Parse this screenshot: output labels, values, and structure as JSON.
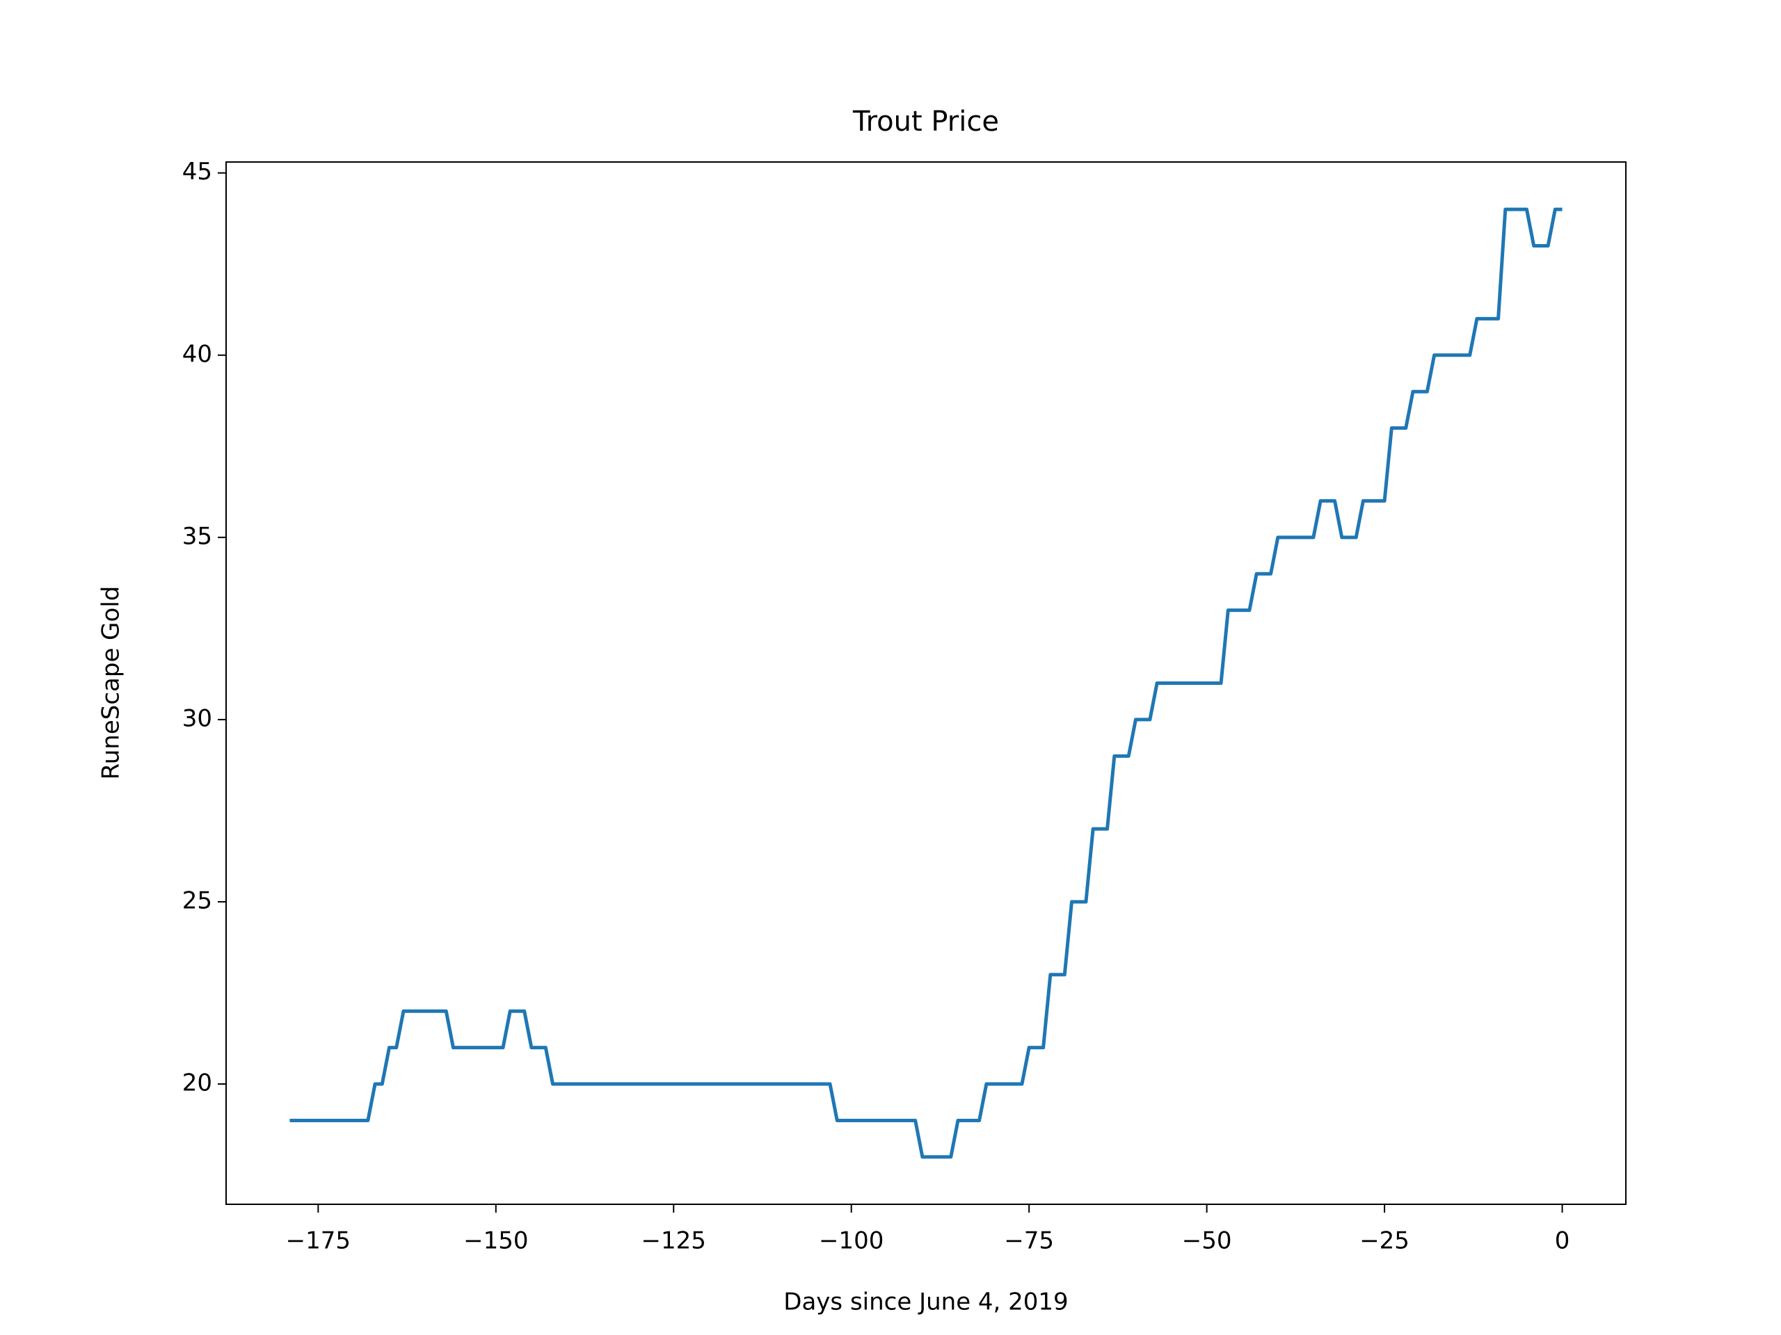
{
  "chart_data": {
    "type": "line",
    "title": "Trout Price",
    "xlabel": "Days since June 4, 2019",
    "ylabel": "RuneScape Gold",
    "x": [
      -179,
      -178,
      -177,
      -176,
      -175,
      -174,
      -173,
      -172,
      -171,
      -170,
      -169,
      -168,
      -167,
      -166,
      -165,
      -164,
      -163,
      -162,
      -161,
      -160,
      -159,
      -158,
      -157,
      -156,
      -155,
      -154,
      -153,
      -152,
      -151,
      -150,
      -149,
      -148,
      -147,
      -146,
      -145,
      -144,
      -143,
      -142,
      -141,
      -140,
      -139,
      -138,
      -137,
      -136,
      -135,
      -134,
      -133,
      -132,
      -131,
      -130,
      -129,
      -128,
      -127,
      -126,
      -125,
      -124,
      -123,
      -122,
      -121,
      -120,
      -119,
      -118,
      -117,
      -116,
      -115,
      -114,
      -113,
      -112,
      -111,
      -110,
      -109,
      -108,
      -107,
      -106,
      -105,
      -104,
      -103,
      -102,
      -101,
      -100,
      -99,
      -98,
      -97,
      -96,
      -95,
      -94,
      -93,
      -92,
      -91,
      -90,
      -89,
      -88,
      -87,
      -86,
      -85,
      -84,
      -83,
      -82,
      -81,
      -80,
      -79,
      -78,
      -77,
      -76,
      -75,
      -74,
      -73,
      -72,
      -71,
      -70,
      -69,
      -68,
      -67,
      -66,
      -65,
      -64,
      -63,
      -62,
      -61,
      -60,
      -59,
      -58,
      -57,
      -56,
      -55,
      -54,
      -53,
      -52,
      -51,
      -50,
      -49,
      -48,
      -47,
      -46,
      -45,
      -44,
      -43,
      -42,
      -41,
      -40,
      -39,
      -38,
      -37,
      -36,
      -35,
      -34,
      -33,
      -32,
      -31,
      -30,
      -29,
      -28,
      -27,
      -26,
      -25,
      -24,
      -23,
      -22,
      -21,
      -20,
      -19,
      -18,
      -17,
      -16,
      -15,
      -14,
      -13,
      -12,
      -11,
      -10,
      -9,
      -8,
      -7,
      -6,
      -5,
      -4,
      -3,
      -2,
      -1,
      0
    ],
    "series": [
      {
        "name": "Trout",
        "color": "#1f77b4",
        "values": [
          19,
          19,
          19,
          19,
          19,
          19,
          19,
          19,
          19,
          19,
          19,
          19,
          20,
          20,
          21,
          21,
          22,
          22,
          22,
          22,
          22,
          22,
          22,
          21,
          21,
          21,
          21,
          21,
          21,
          21,
          21,
          22,
          22,
          22,
          21,
          21,
          21,
          20,
          20,
          20,
          20,
          20,
          20,
          20,
          20,
          20,
          20,
          20,
          20,
          20,
          20,
          20,
          20,
          20,
          20,
          20,
          20,
          20,
          20,
          20,
          20,
          20,
          20,
          20,
          20,
          20,
          20,
          20,
          20,
          20,
          20,
          20,
          20,
          20,
          20,
          20,
          20,
          19,
          19,
          19,
          19,
          19,
          19,
          19,
          19,
          19,
          19,
          19,
          19,
          18,
          18,
          18,
          18,
          18,
          19,
          19,
          19,
          19,
          20,
          20,
          20,
          20,
          20,
          20,
          21,
          21,
          21,
          23,
          23,
          23,
          25,
          25,
          25,
          27,
          27,
          27,
          29,
          29,
          29,
          30,
          30,
          30,
          31,
          31,
          31,
          31,
          31,
          31,
          31,
          31,
          31,
          31,
          33,
          33,
          33,
          33,
          34,
          34,
          34,
          35,
          35,
          35,
          35,
          35,
          35,
          36,
          36,
          36,
          35,
          35,
          35,
          36,
          36,
          36,
          36,
          38,
          38,
          38,
          39,
          39,
          39,
          40,
          40,
          40,
          40,
          40,
          40,
          41,
          41,
          41,
          41,
          44,
          44,
          44,
          44,
          43,
          43,
          43,
          44,
          44
        ]
      }
    ],
    "xlim": [
      -187.95,
      8.95
    ],
    "ylim": [
      16.7,
      45.3
    ],
    "xticks": [
      {
        "value": -175,
        "label": "−175"
      },
      {
        "value": -150,
        "label": "−150"
      },
      {
        "value": -125,
        "label": "−125"
      },
      {
        "value": -100,
        "label": "−100"
      },
      {
        "value": -75,
        "label": "−75"
      },
      {
        "value": -50,
        "label": "−50"
      },
      {
        "value": -25,
        "label": "−25"
      },
      0
    ],
    "yticks": [
      20,
      25,
      30,
      35,
      40,
      45
    ]
  }
}
